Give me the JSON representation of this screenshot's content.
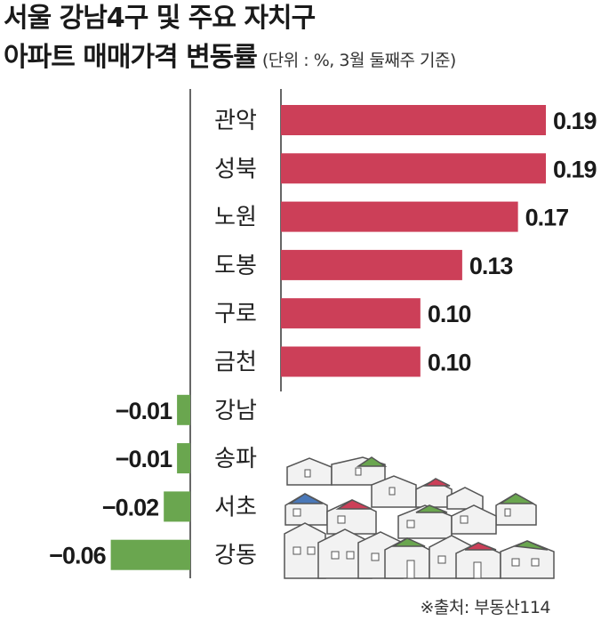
{
  "title_line1": "서울 강남4구 및 주요 자치구",
  "title_line2": "아파트 매매가격 변동률",
  "subtitle": "(단위 : %, 3월 둘째주 기준)",
  "source": "※출처: 부동산114",
  "colors": {
    "positive": "#cc3f58",
    "negative": "#6aa64f",
    "axis": "#333333"
  },
  "illustration": "houses-illustration",
  "chart_data": {
    "type": "bar",
    "orientation": "horizontal",
    "categories": [
      "관악",
      "성북",
      "노원",
      "도봉",
      "구로",
      "금천",
      "강남",
      "송파",
      "서초",
      "강동"
    ],
    "values": [
      0.19,
      0.19,
      0.17,
      0.13,
      0.1,
      0.1,
      -0.01,
      -0.01,
      -0.02,
      -0.06
    ],
    "value_labels": [
      "0.19",
      "0.19",
      "0.17",
      "0.13",
      "0.10",
      "0.10",
      "−0.01",
      "−0.01",
      "−0.02",
      "−0.06"
    ],
    "unit": "%"
  }
}
